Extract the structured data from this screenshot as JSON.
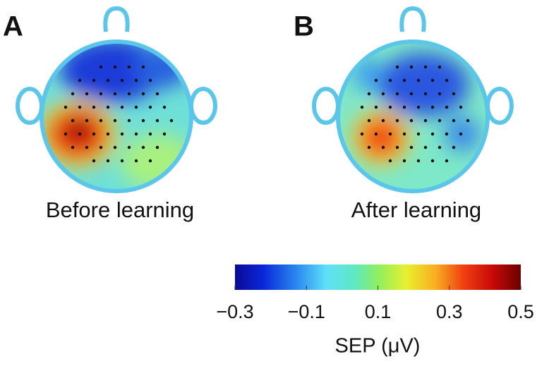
{
  "panels": [
    {
      "letter": "A",
      "caption": "Before learning"
    },
    {
      "letter": "B",
      "caption": "After learning"
    }
  ],
  "colorbar": {
    "label": "SEP (μV)",
    "lim": [
      -0.3,
      0.5
    ],
    "ticks": [
      {
        "value": -0.3,
        "label": "−0.3"
      },
      {
        "value": -0.1,
        "label": "−0.1"
      },
      0.1,
      0.3,
      0.5
    ]
  }
}
